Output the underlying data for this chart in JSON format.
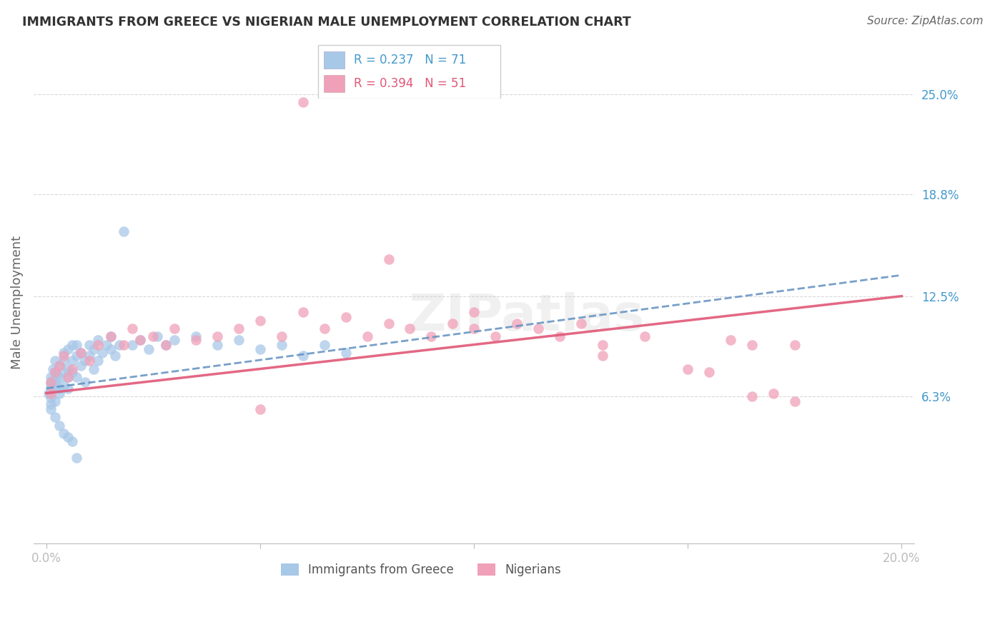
{
  "title": "IMMIGRANTS FROM GREECE VS NIGERIAN MALE UNEMPLOYMENT CORRELATION CHART",
  "source": "Source: ZipAtlas.com",
  "ylabel": "Male Unemployment",
  "xlim": [
    -0.003,
    0.203
  ],
  "ylim": [
    -0.028,
    0.27
  ],
  "yticks": [
    0.063,
    0.125,
    0.188,
    0.25
  ],
  "ytick_labels": [
    "6.3%",
    "12.5%",
    "18.8%",
    "25.0%"
  ],
  "xtick_vals": [
    0.0,
    0.05,
    0.1,
    0.15,
    0.2
  ],
  "xtick_labels": [
    "0.0%",
    "",
    "",
    "",
    "20.0%"
  ],
  "legend1_label": "Immigrants from Greece",
  "legend2_label": "Nigerians",
  "R1": 0.237,
  "N1": 71,
  "R2": 0.394,
  "N2": 51,
  "color_blue": "#a8c8e8",
  "color_pink": "#f0a0b8",
  "color_blue_line": "#6090c0",
  "color_pink_line": "#e05878",
  "bg_color": "#ffffff",
  "grid_color": "#d8d8d8",
  "axis_label_color": "#4499cc",
  "title_color": "#333333",
  "source_color": "#666666",
  "blue_x": [
    0.0005,
    0.001,
    0.001,
    0.001,
    0.001,
    0.001,
    0.001,
    0.0015,
    0.0015,
    0.002,
    0.002,
    0.002,
    0.002,
    0.002,
    0.0025,
    0.003,
    0.003,
    0.003,
    0.003,
    0.004,
    0.004,
    0.004,
    0.004,
    0.005,
    0.005,
    0.005,
    0.005,
    0.006,
    0.006,
    0.006,
    0.007,
    0.007,
    0.007,
    0.008,
    0.008,
    0.009,
    0.009,
    0.01,
    0.01,
    0.011,
    0.011,
    0.012,
    0.012,
    0.013,
    0.014,
    0.015,
    0.015,
    0.016,
    0.017,
    0.018,
    0.02,
    0.022,
    0.024,
    0.026,
    0.028,
    0.03,
    0.035,
    0.04,
    0.045,
    0.05,
    0.055,
    0.06,
    0.065,
    0.07,
    0.001,
    0.002,
    0.003,
    0.004,
    0.005,
    0.006,
    0.007
  ],
  "blue_y": [
    0.065,
    0.072,
    0.068,
    0.075,
    0.07,
    0.062,
    0.058,
    0.08,
    0.073,
    0.078,
    0.069,
    0.085,
    0.072,
    0.06,
    0.076,
    0.068,
    0.082,
    0.075,
    0.065,
    0.09,
    0.078,
    0.085,
    0.07,
    0.092,
    0.08,
    0.075,
    0.068,
    0.085,
    0.095,
    0.078,
    0.088,
    0.075,
    0.095,
    0.082,
    0.09,
    0.085,
    0.072,
    0.095,
    0.088,
    0.092,
    0.08,
    0.098,
    0.085,
    0.09,
    0.095,
    0.092,
    0.1,
    0.088,
    0.095,
    0.165,
    0.095,
    0.098,
    0.092,
    0.1,
    0.095,
    0.098,
    0.1,
    0.095,
    0.098,
    0.092,
    0.095,
    0.088,
    0.095,
    0.09,
    0.055,
    0.05,
    0.045,
    0.04,
    0.038,
    0.035,
    0.025
  ],
  "pink_x": [
    0.001,
    0.001,
    0.002,
    0.003,
    0.004,
    0.005,
    0.006,
    0.008,
    0.01,
    0.012,
    0.015,
    0.018,
    0.02,
    0.022,
    0.025,
    0.028,
    0.03,
    0.035,
    0.04,
    0.045,
    0.05,
    0.055,
    0.06,
    0.065,
    0.07,
    0.075,
    0.08,
    0.085,
    0.09,
    0.095,
    0.1,
    0.105,
    0.11,
    0.115,
    0.12,
    0.125,
    0.13,
    0.14,
    0.15,
    0.16,
    0.165,
    0.17,
    0.175,
    0.05,
    0.08,
    0.1,
    0.13,
    0.155,
    0.165,
    0.175,
    0.06
  ],
  "pink_y": [
    0.072,
    0.065,
    0.078,
    0.082,
    0.088,
    0.075,
    0.08,
    0.09,
    0.085,
    0.095,
    0.1,
    0.095,
    0.105,
    0.098,
    0.1,
    0.095,
    0.105,
    0.098,
    0.1,
    0.105,
    0.11,
    0.1,
    0.115,
    0.105,
    0.112,
    0.1,
    0.108,
    0.105,
    0.1,
    0.108,
    0.105,
    0.1,
    0.108,
    0.105,
    0.1,
    0.108,
    0.095,
    0.1,
    0.08,
    0.098,
    0.095,
    0.065,
    0.095,
    0.055,
    0.148,
    0.115,
    0.088,
    0.078,
    0.063,
    0.06,
    0.245
  ],
  "blue_line_x0": 0.0,
  "blue_line_x1": 0.2,
  "blue_line_y0": 0.068,
  "blue_line_y1": 0.138,
  "pink_line_x0": 0.0,
  "pink_line_x1": 0.2,
  "pink_line_y0": 0.065,
  "pink_line_y1": 0.125
}
